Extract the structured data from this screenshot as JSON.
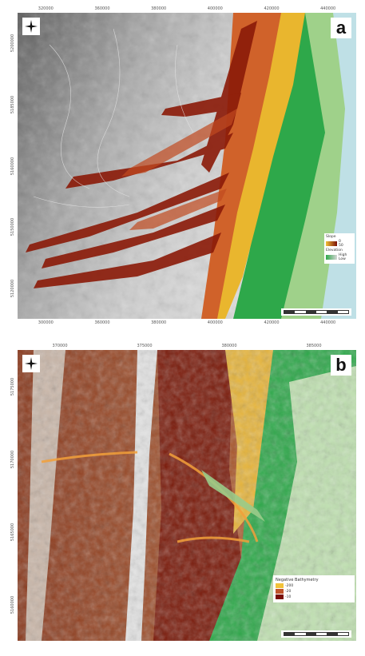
{
  "panels": [
    {
      "label": "a",
      "top_ticks": [
        "320000",
        "360000",
        "380000",
        "400000",
        "420000",
        "440000"
      ],
      "bottom_ticks": [
        "300000",
        "360000",
        "380000",
        "400000",
        "420000",
        "440000"
      ],
      "left_ticks": [
        "5200000",
        "5185000",
        "5160000",
        "5150000",
        "5120000"
      ],
      "legend": {
        "sections": [
          {
            "title": "Slope",
            "items": [
              "0",
              "50"
            ]
          },
          {
            "title": "Elevation",
            "items": [
              "High",
              "Low"
            ]
          }
        ]
      },
      "north_icon": "north-arrow-icon"
    },
    {
      "label": "b",
      "top_ticks": [
        "370000",
        "375000",
        "380000",
        "385000"
      ],
      "left_ticks": [
        "5175000",
        "5170000",
        "5165000",
        "5160000"
      ],
      "legend": {
        "title": "Negative Bathymetry",
        "items": [
          "-200",
          "-20",
          "-10"
        ]
      },
      "north_icon": "north-arrow-icon"
    }
  ],
  "colors": {
    "relief_low": "#7a0f06",
    "relief_mid": "#c0542a",
    "relief_high": "#f2c23a",
    "plain_green": "#2ea84a",
    "plain_light": "#c9e6b4",
    "hillshade_dark": "#4a4a4a",
    "hillshade_light": "#d6d6d6"
  }
}
